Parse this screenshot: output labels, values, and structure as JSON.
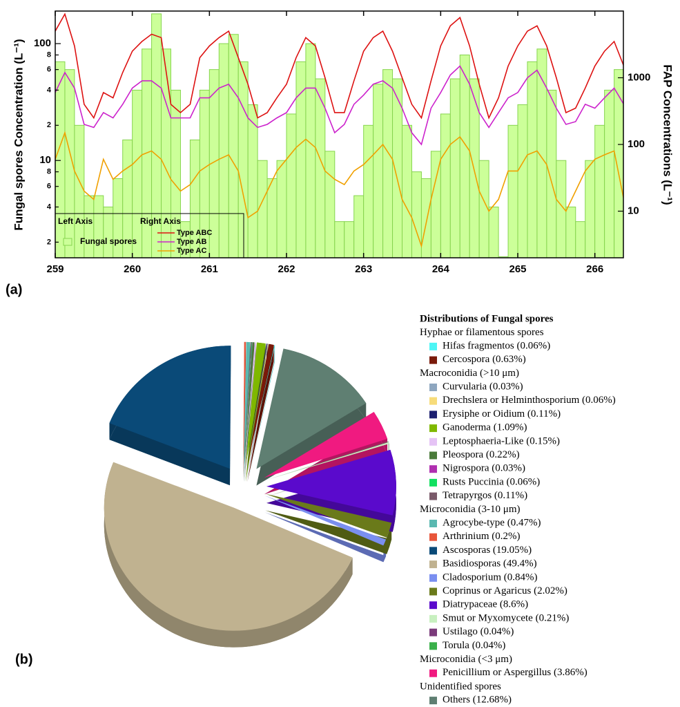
{
  "chart_data": [
    {
      "type": "combo",
      "panel_label": "(a)",
      "ylabel": "Fungal spores Concentration (L⁻¹)",
      "y2label": "FAP Concentrations (L⁻¹)",
      "x": [
        259,
        259.125,
        259.25,
        259.375,
        259.5,
        259.625,
        259.75,
        259.875,
        260,
        260.125,
        260.25,
        260.375,
        260.5,
        260.625,
        260.75,
        260.875,
        261,
        261.125,
        261.25,
        261.375,
        261.5,
        261.625,
        261.75,
        261.875,
        262,
        262.125,
        262.25,
        262.375,
        262.5,
        262.625,
        262.75,
        262.875,
        263,
        263.125,
        263.25,
        263.375,
        263.5,
        263.625,
        263.75,
        263.875,
        264,
        264.125,
        264.25,
        264.375,
        264.5,
        264.625,
        264.75,
        264.875,
        265,
        265.125,
        265.25,
        265.375,
        265.5,
        265.625,
        265.75,
        265.875,
        266,
        266.125,
        266.25,
        266.375
      ],
      "xlim": [
        259,
        266.37
      ],
      "xticks": [
        259,
        260,
        261,
        262,
        263,
        264,
        265,
        266
      ],
      "ylim": [
        1.47,
        190
      ],
      "yscale": "log",
      "yticks": [
        2,
        4,
        6,
        8,
        10,
        {
          "value": 20,
          "label": "2"
        },
        {
          "value": 40,
          "label": "4"
        },
        {
          "value": 60,
          "label": "6"
        },
        {
          "value": 80,
          "label": "8"
        },
        100
      ],
      "y2lim": [
        2,
        10000
      ],
      "y2scale": "log",
      "y2ticks": [
        10,
        100,
        1000
      ],
      "legend": {
        "left_title": "Left Axis",
        "right_title": "Right Axis",
        "position": "lower left"
      },
      "series": [
        {
          "name": "Fungal spores",
          "type": "bar",
          "color": "#ccff99",
          "edgecolor": "#86d44e",
          "values": [
            70,
            60,
            20,
            5,
            5,
            4,
            7,
            15,
            40,
            90,
            180,
            90,
            40,
            3,
            15,
            40,
            60,
            100,
            120,
            70,
            30,
            10,
            7,
            10,
            25,
            70,
            100,
            50,
            12,
            3,
            3,
            5,
            20,
            45,
            60,
            50,
            20,
            8,
            7,
            12,
            25,
            50,
            80,
            50,
            10,
            4,
            1.5,
            20,
            30,
            70,
            90,
            40,
            10,
            4,
            3,
            10,
            20,
            40,
            60,
            40
          ]
        },
        {
          "name": "Type ABC",
          "type": "line",
          "axis": "y2",
          "color": "#dd1111",
          "values": [
            5000,
            9000,
            3000,
            400,
            250,
            600,
            500,
            1200,
            2500,
            3500,
            4500,
            4000,
            400,
            300,
            400,
            2000,
            3000,
            4000,
            5000,
            2000,
            800,
            250,
            300,
            500,
            800,
            2000,
            4000,
            3000,
            1000,
            300,
            300,
            900,
            2500,
            4000,
            5000,
            2500,
            1000,
            400,
            250,
            900,
            3000,
            6000,
            8000,
            3000,
            800,
            250,
            500,
            1500,
            3000,
            5000,
            6000,
            3000,
            1000,
            300,
            350,
            700,
            1500,
            2500,
            3500,
            1500
          ]
        },
        {
          "name": "Type AB",
          "type": "line",
          "axis": "y2",
          "color": "#cc22cc",
          "values": [
            600,
            1200,
            700,
            200,
            180,
            300,
            250,
            400,
            700,
            900,
            900,
            700,
            250,
            250,
            250,
            500,
            500,
            700,
            800,
            500,
            250,
            180,
            200,
            250,
            300,
            500,
            700,
            700,
            350,
            150,
            200,
            400,
            550,
            800,
            900,
            700,
            350,
            150,
            100,
            350,
            600,
            1100,
            1500,
            800,
            300,
            180,
            300,
            500,
            600,
            1000,
            1300,
            700,
            350,
            200,
            220,
            400,
            350,
            500,
            700,
            400
          ]
        },
        {
          "name": "Type AC",
          "type": "line",
          "axis": "y2",
          "color": "#f0a000",
          "values": [
            60,
            150,
            40,
            20,
            15,
            60,
            30,
            40,
            50,
            70,
            80,
            60,
            30,
            20,
            25,
            40,
            50,
            60,
            70,
            40,
            8,
            10,
            20,
            40,
            60,
            90,
            120,
            90,
            40,
            30,
            25,
            40,
            50,
            70,
            100,
            60,
            15,
            8,
            3,
            15,
            60,
            100,
            130,
            80,
            20,
            10,
            15,
            40,
            40,
            70,
            80,
            50,
            15,
            10,
            20,
            40,
            60,
            70,
            80,
            15
          ]
        }
      ]
    },
    {
      "type": "pie",
      "panel_label": "(b)",
      "legend_title": "Distributions of Fungal spores",
      "groups": [
        {
          "name": "Hyphae or filamentous spores",
          "categories": [
            "Hifas fragmentos",
            "Cercospora"
          ],
          "values": [
            0.06,
            0.63
          ],
          "value_labels": [
            "(0.06%)",
            "(0.63%)"
          ],
          "colors": [
            "#4df5f5",
            "#7a1a0a"
          ]
        },
        {
          "name": "Macroconidia (>10 μm)",
          "categories": [
            "Curvularia",
            "Drechslera or Helminthosporium",
            "Erysiphe or Oidium",
            "Ganoderma",
            "Leptosphaeria-Like",
            "Pleospora",
            "Nigrospora",
            "Rusts Puccinia",
            "Tetrapyrgos"
          ],
          "values": [
            0.03,
            0.06,
            0.11,
            1.09,
            0.15,
            0.22,
            0.03,
            0.06,
            0.11
          ],
          "value_labels": [
            "(0.03%)",
            "(0.06%)",
            "(0.11%)",
            "(1.09%)",
            "(0.15%)",
            "(0.22%)",
            "(0.03%)",
            "(0.06%)",
            "(0.11%)"
          ],
          "colors": [
            "#8ea6bf",
            "#f7dc7a",
            "#1d2070",
            "#7fb800",
            "#e5c3f5",
            "#4a7a3a",
            "#b02fb0",
            "#12e060",
            "#7a5a6a"
          ]
        },
        {
          "name": "Microconidia (3-10 μm)",
          "categories": [
            "Agrocybe-type",
            "Arthrinium",
            "Ascosporas",
            "Basidiosporas",
            "Cladosporium",
            "Coprinus or Agaricus",
            "Diatrypaceae",
            "Smut or Myxomycete",
            "Ustilago",
            "Torula"
          ],
          "values": [
            0.47,
            0.2,
            19.05,
            49.4,
            0.84,
            2.02,
            8.6,
            0.21,
            0.04,
            0.04
          ],
          "value_labels": [
            "(0.47%)",
            "(0.2%)",
            "(19.05%)",
            "(49.4%)",
            "(0.84%)",
            "(2.02%)",
            "(8.6%)",
            "(0.21%)",
            "(0.04%)",
            "(0.04%)"
          ],
          "colors": [
            "#5ab8b0",
            "#e8553a",
            "#0a4a78",
            "#c0b290",
            "#7a8ff0",
            "#6a7a1a",
            "#5a0acc",
            "#c8f0c0",
            "#7a3a7a",
            "#3ab04a"
          ]
        },
        {
          "name": "Microconidia (<3 μm)",
          "categories": [
            "Penicillium or Aspergillus"
          ],
          "values": [
            3.86
          ],
          "value_labels": [
            "(3.86%)"
          ],
          "colors": [
            "#f01a80"
          ]
        },
        {
          "name": "Unidentified spores",
          "categories": [
            "Others"
          ],
          "values": [
            12.68
          ],
          "value_labels": [
            "(12.68%)"
          ],
          "colors": [
            "#5f7f72"
          ]
        }
      ]
    }
  ]
}
